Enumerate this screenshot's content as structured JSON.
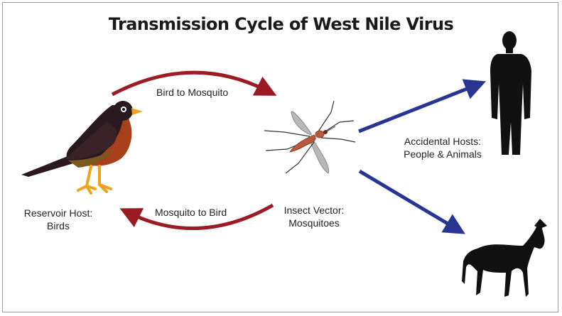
{
  "title": "Transmission Cycle of West Nile Virus",
  "labels": {
    "bird_to_mosquito": "Bird to Mosquito",
    "mosquito_to_bird": "Mosquito to Bird",
    "reservoir_line1": "Reservoir Host:",
    "reservoir_line2": "Birds",
    "vector_line1": "Insect Vector:",
    "vector_line2": "Mosquitoes",
    "accidental_line1": "Accidental Hosts:",
    "accidental_line2": "People & Animals"
  },
  "colors": {
    "cycle_arrow": "#9b1c24",
    "spread_arrow": "#283593",
    "silhouette": "#111111",
    "bird_head": "#2a1a20",
    "bird_breast": "#a8401c",
    "bird_legs": "#f0a21e",
    "mosquito_body": "#b85a3c",
    "mosquito_wing": "#b8b8b8"
  },
  "icons": [
    "bird-icon",
    "mosquito-icon",
    "person-icon",
    "horse-icon"
  ]
}
